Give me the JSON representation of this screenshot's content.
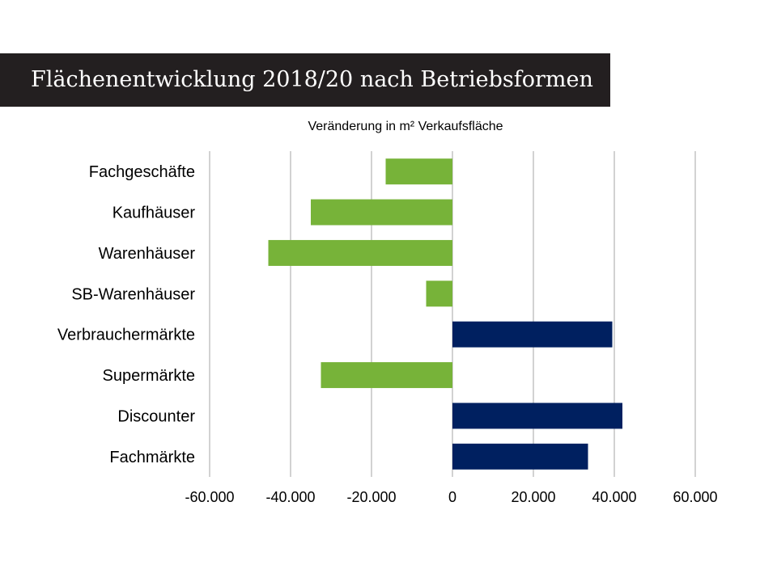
{
  "title": "Flächenentwicklung 2018/20 nach Betriebsformen",
  "chart_data": {
    "type": "bar",
    "orientation": "horizontal",
    "subtitle": "Veränderung in m² Verkaufsfläche",
    "categories": [
      "Fachgeschäfte",
      "Kaufhäuser",
      "Warenhäuser",
      "SB-Warenhäuser",
      "Verbrauchermärkte",
      "Supermärkte",
      "Discounter",
      "Fachmärkte"
    ],
    "values": [
      -16500,
      -35000,
      -45500,
      -6500,
      39500,
      -32500,
      42000,
      33500
    ],
    "xlim": [
      -60000,
      60000
    ],
    "xticks": [
      -60000,
      -40000,
      -20000,
      0,
      20000,
      40000,
      60000
    ],
    "xtick_labels": [
      "-60.000",
      "-40.000",
      "-20.000",
      "0",
      "20.000",
      "40.000",
      "60.000"
    ],
    "grid": true,
    "legend": "none",
    "colors": {
      "positive": "#002060",
      "negative": "#77b339",
      "grid": "#a6a6a6"
    }
  }
}
